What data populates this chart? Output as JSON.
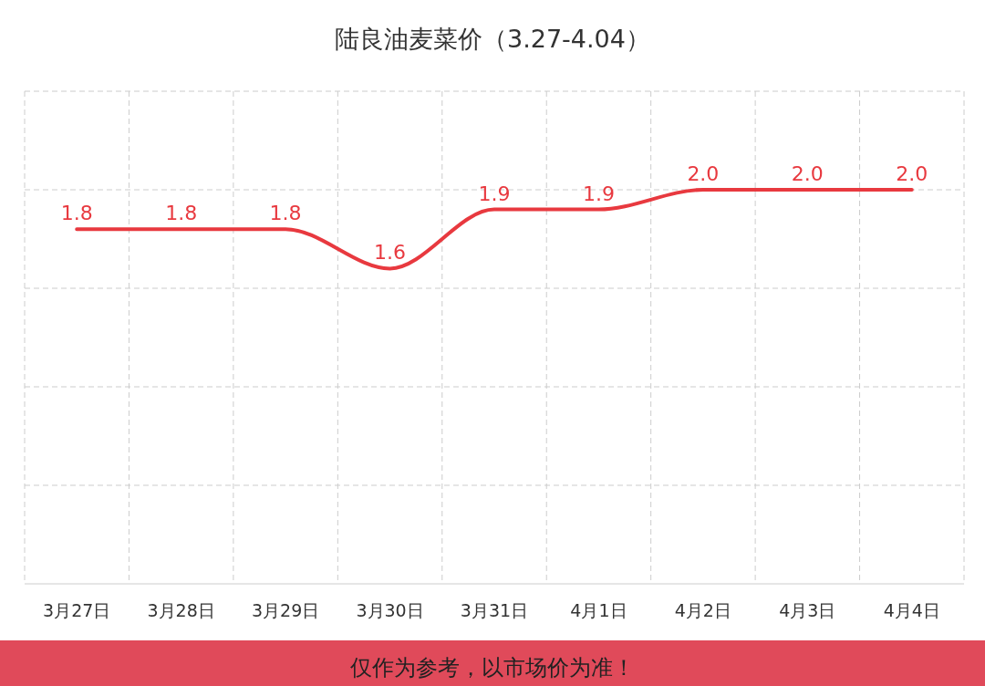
{
  "chart_data": {
    "type": "line",
    "title": "陆良油麦菜价（3.27-4.04）",
    "categories": [
      "3月27日",
      "3月28日",
      "3月29日",
      "3月30日",
      "3月31日",
      "4月1日",
      "4月2日",
      "4月3日",
      "4月4日"
    ],
    "values": [
      1.8,
      1.8,
      1.8,
      1.6,
      1.9,
      1.9,
      2.0,
      2.0,
      2.0
    ],
    "color": "#e8393f",
    "ylim": [
      0,
      2.5
    ],
    "yticks": [
      {
        "value": 0,
        "label": null
      },
      {
        "value": 0.5,
        "label": null
      },
      {
        "value": 1,
        "label": null
      },
      {
        "value": 1.5,
        "label": null
      },
      {
        "value": 2,
        "label": null
      },
      {
        "value": 2.5,
        "label": null
      }
    ],
    "value_labels": [
      "1.8",
      "1.8",
      "1.8",
      "1.6",
      "1.9",
      "1.9",
      "2.0",
      "2.0",
      "2.0"
    ],
    "grid": true,
    "tick_labels": "x",
    "marker": "none",
    "annotations": [
      "仅作为参考，以市场价为准！"
    ]
  }
}
